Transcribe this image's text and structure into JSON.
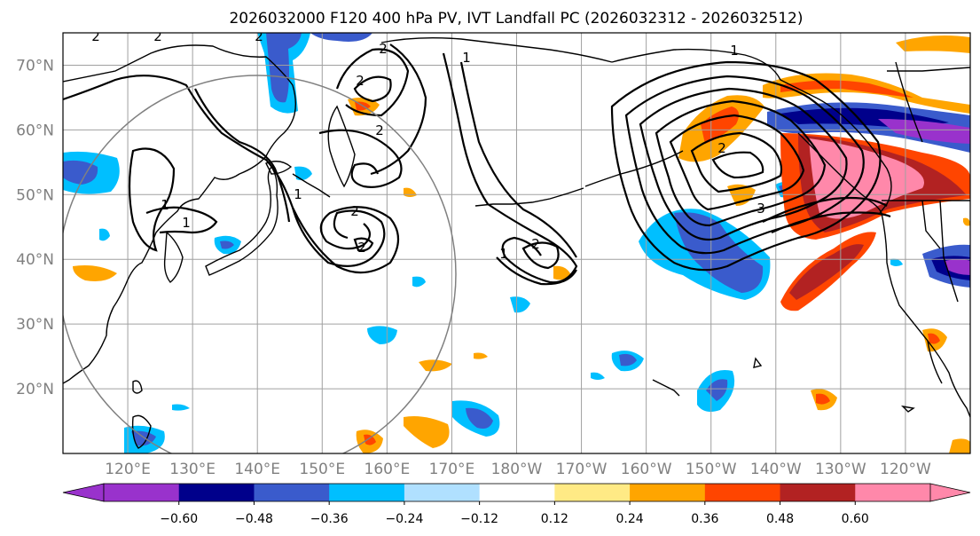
{
  "title": "2026032000 F120 400 hPa PV, IVT Landfall PC (2026032312 - 2026032512)",
  "map": {
    "lon_range": [
      110,
      250
    ],
    "lat_range": [
      10,
      75
    ],
    "lat_ticks": [
      {
        "value": 70,
        "label": "70°N"
      },
      {
        "value": 60,
        "label": "60°N"
      },
      {
        "value": 50,
        "label": "50°N"
      },
      {
        "value": 40,
        "label": "40°N"
      },
      {
        "value": 30,
        "label": "30°N"
      },
      {
        "value": 20,
        "label": "20°N"
      }
    ],
    "lon_ticks": [
      {
        "value": 120,
        "label": "120°E"
      },
      {
        "value": 130,
        "label": "130°E"
      },
      {
        "value": 140,
        "label": "140°E"
      },
      {
        "value": 150,
        "label": "150°E"
      },
      {
        "value": 160,
        "label": "160°E"
      },
      {
        "value": 170,
        "label": "170°E"
      },
      {
        "value": 180,
        "label": "180°W"
      },
      {
        "value": 190,
        "label": "170°W"
      },
      {
        "value": 200,
        "label": "160°W"
      },
      {
        "value": 210,
        "label": "150°W"
      },
      {
        "value": 220,
        "label": "140°W"
      },
      {
        "value": 230,
        "label": "130°W"
      },
      {
        "value": 240,
        "label": "120°W"
      }
    ],
    "grid": true,
    "contour_labels": [
      "2",
      "2",
      "2",
      "2",
      "2",
      "2",
      "1",
      "1",
      "1",
      "1",
      "2",
      "2",
      "3",
      "1",
      "2",
      "2",
      "1"
    ]
  },
  "colorbar": {
    "colors": [
      "#9932CC",
      "#00008B",
      "#3A5BCC",
      "#00BFFF",
      "#B0E0FF",
      "#FFFFFF",
      "#FFEA85",
      "#FFA500",
      "#FF4500",
      "#B22222",
      "#FF88AA"
    ],
    "labels": [
      "−0.60",
      "−0.48",
      "−0.36",
      "−0.24",
      "−0.12",
      "0.12",
      "0.24",
      "0.36",
      "0.48",
      "0.60"
    ]
  }
}
